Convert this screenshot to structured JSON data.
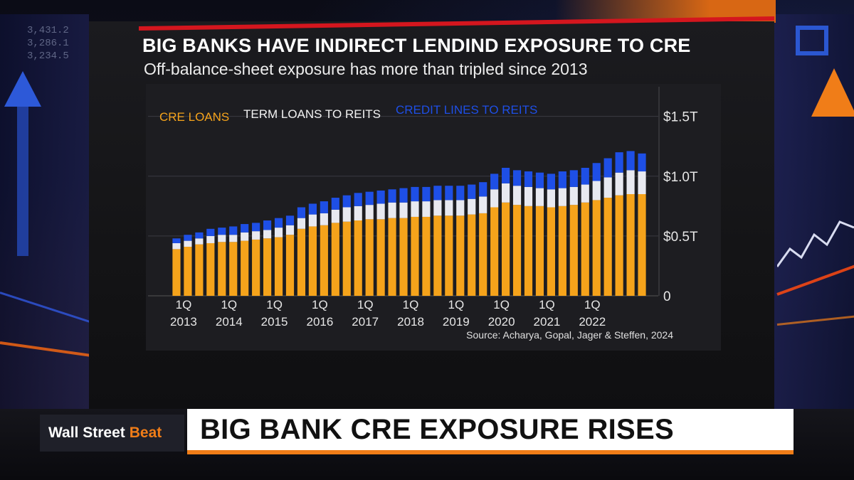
{
  "chart_data": {
    "type": "bar",
    "stacked": true,
    "title": "BIG BANKS HAVE INDIRECT LENDIND EXPOSURE TO CRE",
    "subtitle": "Off-balance-sheet exposure has more than tripled since 2013",
    "source": "Source: Acharya, Gopal, Jager & Steffen, 2024",
    "x_tick_labels": [
      {
        "quarter": "1Q",
        "year": "2013",
        "index": 0
      },
      {
        "quarter": "1Q",
        "year": "2014",
        "index": 4
      },
      {
        "quarter": "1Q",
        "year": "2015",
        "index": 8
      },
      {
        "quarter": "1Q",
        "year": "2016",
        "index": 12
      },
      {
        "quarter": "1Q",
        "year": "2017",
        "index": 16
      },
      {
        "quarter": "1Q",
        "year": "2018",
        "index": 20
      },
      {
        "quarter": "1Q",
        "year": "2019",
        "index": 24
      },
      {
        "quarter": "1Q",
        "year": "2020",
        "index": 28
      },
      {
        "quarter": "1Q",
        "year": "2021",
        "index": 32
      },
      {
        "quarter": "1Q",
        "year": "2022",
        "index": 36
      }
    ],
    "y_ticks": [
      {
        "value": 0,
        "label": "0"
      },
      {
        "value": 0.5,
        "label": "$0.5T"
      },
      {
        "value": 1.0,
        "label": "$1.0T"
      },
      {
        "value": 1.5,
        "label": "$1.5T"
      }
    ],
    "ylim": [
      0,
      1.7
    ],
    "grid": true,
    "legend_position": "top-left",
    "series": [
      {
        "name": "CRE LOANS",
        "color": "#f5a31b",
        "values": [
          0.39,
          0.41,
          0.43,
          0.44,
          0.45,
          0.45,
          0.46,
          0.47,
          0.48,
          0.49,
          0.51,
          0.56,
          0.58,
          0.59,
          0.61,
          0.62,
          0.63,
          0.64,
          0.64,
          0.65,
          0.65,
          0.66,
          0.66,
          0.67,
          0.67,
          0.67,
          0.68,
          0.69,
          0.74,
          0.78,
          0.76,
          0.75,
          0.75,
          0.74,
          0.75,
          0.76,
          0.78,
          0.8,
          0.82,
          0.84,
          0.85,
          0.85
        ]
      },
      {
        "name": "TERM LOANS TO REITS",
        "color": "#e8e9f0",
        "values": [
          0.05,
          0.05,
          0.05,
          0.06,
          0.06,
          0.06,
          0.07,
          0.07,
          0.07,
          0.08,
          0.08,
          0.09,
          0.1,
          0.1,
          0.11,
          0.12,
          0.12,
          0.12,
          0.13,
          0.13,
          0.13,
          0.13,
          0.13,
          0.13,
          0.13,
          0.13,
          0.13,
          0.14,
          0.15,
          0.16,
          0.16,
          0.16,
          0.15,
          0.15,
          0.15,
          0.15,
          0.15,
          0.16,
          0.17,
          0.19,
          0.2,
          0.19
        ]
      },
      {
        "name": "CREDIT LINES TO REITS",
        "color": "#1e4fe6",
        "values": [
          0.04,
          0.05,
          0.05,
          0.06,
          0.06,
          0.07,
          0.07,
          0.07,
          0.08,
          0.08,
          0.08,
          0.09,
          0.09,
          0.1,
          0.1,
          0.1,
          0.11,
          0.11,
          0.11,
          0.11,
          0.12,
          0.12,
          0.12,
          0.12,
          0.12,
          0.12,
          0.12,
          0.12,
          0.13,
          0.13,
          0.13,
          0.13,
          0.13,
          0.13,
          0.14,
          0.14,
          0.14,
          0.15,
          0.16,
          0.17,
          0.16,
          0.15
        ]
      }
    ]
  },
  "lower_third": {
    "show_name": "Wall Street",
    "show_name_accent": "Beat",
    "headline": "BIG BANK CRE EXPOSURE RISES"
  },
  "background": {
    "ticker_lines": [
      "3,431.2",
      "3,286.1",
      "3,234.5"
    ]
  }
}
